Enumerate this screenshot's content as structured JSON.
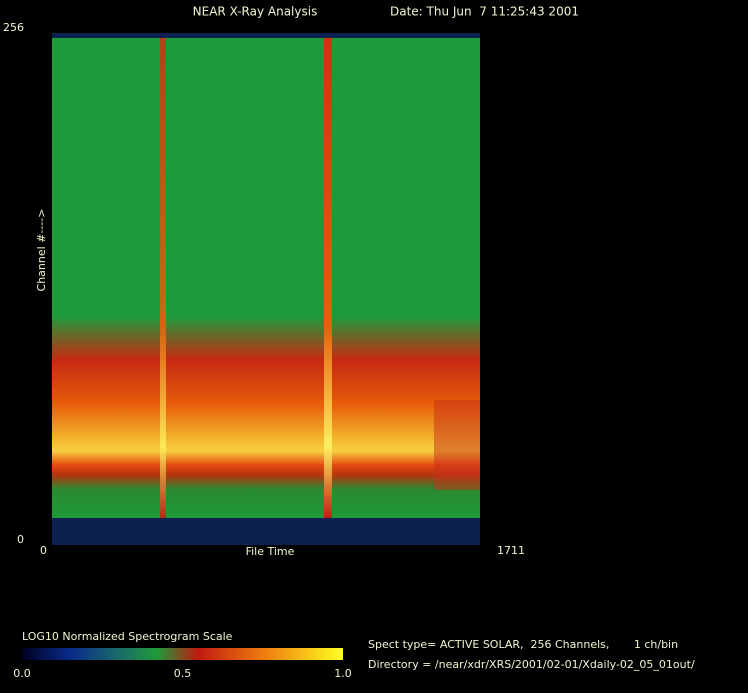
{
  "chart_data": {
    "type": "heatmap",
    "title": "NEAR X-Ray Analysis",
    "subtitle": "Date: Thu Jun  7 11:25:43 2001",
    "x_label": "File Time",
    "y_label": "Channel #---->",
    "xlim": [
      0,
      1711
    ],
    "xticks": [
      0,
      1711
    ],
    "ylim": [
      0,
      256
    ],
    "yticks": [
      0,
      256
    ],
    "colorbar": {
      "title": "LOG10 Normalized Spectrogram Scale",
      "lim": [
        0,
        1
      ],
      "ticks": [
        {
          "value": 0,
          "label": "0.0"
        },
        {
          "value": 0.5,
          "label": "0.5"
        },
        {
          "value": 1,
          "label": "1.0"
        }
      ]
    },
    "notes": [
      "Spect type= ACTIVE SOLAR,  256 Channels,       1 ch/bin",
      "Directory = /near/xdr/XRS/2001/02-01/Xdaily-02_05_01out/"
    ]
  }
}
